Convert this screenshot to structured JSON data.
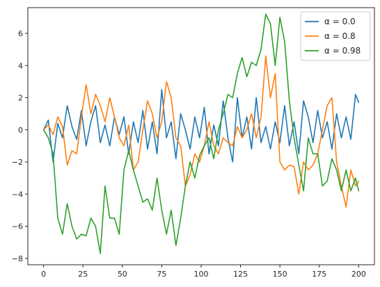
{
  "chart_data": {
    "type": "line",
    "title": "",
    "xlabel": "",
    "ylabel": "",
    "xlim": [
      -10,
      210
    ],
    "ylim": [
      -8.4,
      7.6
    ],
    "xticks": [
      0,
      25,
      50,
      75,
      100,
      125,
      150,
      175,
      200
    ],
    "yticks": [
      -8,
      -6,
      -4,
      -2,
      0,
      2,
      4,
      6
    ],
    "grid": false,
    "legend_position": "top-right",
    "series": [
      {
        "name": "α = 0.0",
        "color": "#1f77b4",
        "x": [
          0,
          3,
          6,
          9,
          12,
          15,
          18,
          21,
          24,
          27,
          30,
          33,
          36,
          39,
          42,
          45,
          48,
          51,
          54,
          57,
          60,
          63,
          66,
          69,
          72,
          75,
          78,
          81,
          84,
          87,
          90,
          93,
          96,
          99,
          102,
          105,
          108,
          111,
          114,
          117,
          120,
          123,
          126,
          129,
          132,
          135,
          138,
          141,
          144,
          147,
          150,
          153,
          156,
          159,
          162,
          165,
          168,
          171,
          174,
          177,
          180,
          183,
          186,
          189,
          192,
          195,
          198,
          200
        ],
        "values": [
          0,
          0.6,
          -2,
          0.4,
          -0.5,
          1.5,
          0.2,
          -0.6,
          1.2,
          -1,
          0.5,
          1.5,
          -0.8,
          0.3,
          -1,
          0.8,
          -0.3,
          0.8,
          -1.5,
          0.5,
          -0.8,
          1.2,
          -1.2,
          0.5,
          -1.5,
          2.5,
          -0.5,
          0.5,
          -1.8,
          1,
          0,
          -1.2,
          0.8,
          -0.5,
          1.4,
          -1.5,
          0.3,
          -1,
          1.8,
          -0.5,
          -2,
          2,
          -0.5,
          0.8,
          -1.2,
          2,
          -0.8,
          0.2,
          -1.2,
          0.5,
          -0.8,
          1.5,
          -1,
          0.5,
          -1.5,
          1.8,
          0.8,
          -0.8,
          1.2,
          -0.5,
          0.5,
          -1.2,
          1,
          -0.5,
          0.8,
          -0.6,
          2.2,
          1.7
        ]
      },
      {
        "name": "α = 0.8",
        "color": "#ff7f0e",
        "x": [
          0,
          3,
          6,
          9,
          12,
          15,
          18,
          21,
          24,
          27,
          30,
          33,
          36,
          39,
          42,
          45,
          48,
          51,
          54,
          57,
          60,
          63,
          66,
          69,
          72,
          75,
          78,
          81,
          84,
          87,
          90,
          93,
          96,
          99,
          102,
          105,
          108,
          111,
          114,
          117,
          120,
          123,
          126,
          129,
          132,
          135,
          138,
          141,
          144,
          147,
          150,
          153,
          156,
          159,
          162,
          165,
          168,
          171,
          174,
          177,
          180,
          183,
          186,
          189,
          192,
          195,
          198,
          200
        ],
        "values": [
          0,
          0.3,
          -0.3,
          0.8,
          0.2,
          -2.2,
          -1.3,
          -1.5,
          0.8,
          2.8,
          1,
          2.2,
          1.5,
          0.5,
          2,
          0.8,
          -0.5,
          -1,
          0.3,
          -2.5,
          -2,
          0,
          1.8,
          1,
          -0.5,
          0.5,
          3,
          2,
          -0.5,
          -1,
          -3.5,
          -2.8,
          -1.5,
          -2,
          -1,
          0.5,
          -1,
          -1.5,
          -0.5,
          -0.8,
          -1,
          0.2,
          -0.5,
          0,
          1,
          -0.5,
          0.8,
          4.6,
          2,
          3.5,
          -2,
          -2.5,
          -2.2,
          -2.3,
          -4,
          -2,
          -2.5,
          -2.2,
          -1.5,
          0,
          1.5,
          2,
          -2,
          -3.5,
          -4.8,
          -2.5,
          -3.5,
          -3.2
        ]
      },
      {
        "name": "α = 0.98",
        "color": "#2ca02c",
        "x": [
          0,
          3,
          6,
          9,
          12,
          15,
          18,
          21,
          24,
          27,
          30,
          33,
          36,
          39,
          42,
          45,
          48,
          51,
          54,
          57,
          60,
          63,
          66,
          69,
          72,
          75,
          78,
          81,
          84,
          87,
          90,
          93,
          96,
          99,
          102,
          105,
          108,
          111,
          114,
          117,
          120,
          123,
          126,
          129,
          132,
          135,
          138,
          141,
          144,
          147,
          150,
          153,
          156,
          159,
          162,
          165,
          168,
          171,
          174,
          177,
          180,
          183,
          186,
          189,
          192,
          195,
          198,
          200
        ],
        "values": [
          0,
          -0.5,
          -1.5,
          -5.5,
          -6.5,
          -4.6,
          -6,
          -6.8,
          -6.5,
          -6.6,
          -5.5,
          -6,
          -7.7,
          -3.5,
          -5.5,
          -5.5,
          -6.5,
          -2.5,
          -1.3,
          -2.5,
          -3.5,
          -4.5,
          -4.3,
          -5,
          -3,
          -5,
          -6.5,
          -5,
          -7.2,
          -5.5,
          -3.5,
          -2,
          -3,
          -1.6,
          -1,
          -0.5,
          -1.8,
          0,
          1,
          2.2,
          2,
          3.5,
          4.5,
          3.3,
          4.2,
          4,
          5,
          7.2,
          6.6,
          4,
          7,
          5.5,
          1.8,
          -0.5,
          -2.2,
          -3.8,
          -0.5,
          -1.5,
          -1.5,
          -3.5,
          -3.2,
          -1.8,
          -2.5,
          -3.8,
          -2.5,
          -3.8,
          -3,
          -3.8
        ]
      }
    ]
  }
}
